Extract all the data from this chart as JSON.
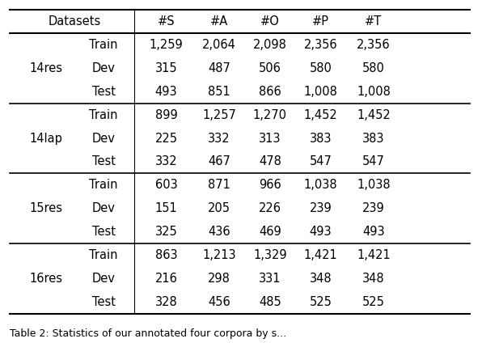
{
  "col_headers": [
    "Datasets",
    "",
    "#S",
    "#A",
    "#O",
    "#P",
    "#T"
  ],
  "datasets": [
    {
      "name": "14res",
      "rows": [
        {
          "split": "Train",
          "S": "1,259",
          "A": "2,064",
          "O": "2,098",
          "P": "2,356",
          "T": "2,356"
        },
        {
          "split": "Dev",
          "S": "315",
          "A": "487",
          "O": "506",
          "P": "580",
          "T": "580"
        },
        {
          "split": "Test",
          "S": "493",
          "A": "851",
          "O": "866",
          "P": "1,008",
          "T": "1,008"
        }
      ]
    },
    {
      "name": "14lap",
      "rows": [
        {
          "split": "Train",
          "S": "899",
          "A": "1,257",
          "O": "1,270",
          "P": "1,452",
          "T": "1,452"
        },
        {
          "split": "Dev",
          "S": "225",
          "A": "332",
          "O": "313",
          "P": "383",
          "T": "383"
        },
        {
          "split": "Test",
          "S": "332",
          "A": "467",
          "O": "478",
          "P": "547",
          "T": "547"
        }
      ]
    },
    {
      "name": "15res",
      "rows": [
        {
          "split": "Train",
          "S": "603",
          "A": "871",
          "O": "966",
          "P": "1,038",
          "T": "1,038"
        },
        {
          "split": "Dev",
          "S": "151",
          "A": "205",
          "O": "226",
          "P": "239",
          "T": "239"
        },
        {
          "split": "Test",
          "S": "325",
          "A": "436",
          "O": "469",
          "P": "493",
          "T": "493"
        }
      ]
    },
    {
      "name": "16res",
      "rows": [
        {
          "split": "Train",
          "S": "863",
          "A": "1,213",
          "O": "1,329",
          "P": "1,421",
          "T": "1,421"
        },
        {
          "split": "Dev",
          "S": "216",
          "A": "298",
          "O": "331",
          "P": "348",
          "T": "348"
        },
        {
          "split": "Test",
          "S": "328",
          "A": "456",
          "O": "485",
          "P": "525",
          "T": "525"
        }
      ]
    }
  ],
  "font_size": 10.5,
  "bg_color": "#ffffff",
  "line_color": "#000000",
  "caption": "Table 2: Statistics of our annotated four corpora by s..."
}
